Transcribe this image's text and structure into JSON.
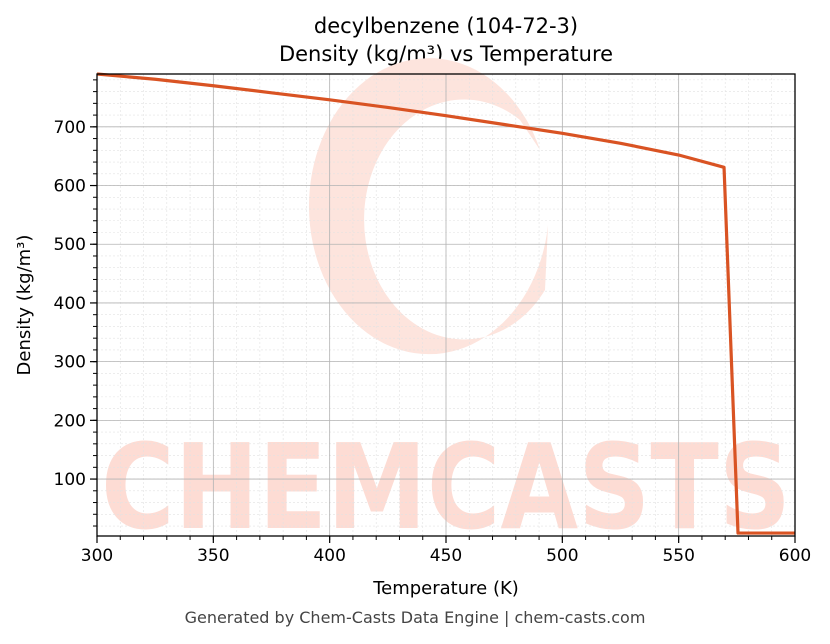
{
  "chart_data": {
    "type": "line",
    "title_line1": "decylbenzene (104-72-3)",
    "title_line2": "Density (kg/m³) vs Temperature",
    "xlabel": "Temperature (K)",
    "ylabel": "Density (kg/m³)",
    "xlim": [
      300,
      600
    ],
    "ylim": [
      3,
      790
    ],
    "xticks": [
      300,
      350,
      400,
      450,
      500,
      550,
      600
    ],
    "yticks": [
      100,
      200,
      300,
      400,
      500,
      600,
      700
    ],
    "grid": true,
    "series": [
      {
        "color": "#d95323",
        "x": [
          300,
          325,
          350,
          375,
          400,
          425,
          450,
          475,
          500,
          525,
          550,
          569.5,
          575.5,
          600
        ],
        "y": [
          790,
          781,
          770,
          758,
          746,
          733,
          719,
          704,
          689,
          672,
          652,
          631,
          8,
          8
        ]
      }
    ]
  },
  "watermark": {
    "text": "CHEMCASTS",
    "color": "#fddcd4"
  },
  "footer": "Generated by Chem-Casts Data Engine | chem-casts.com"
}
